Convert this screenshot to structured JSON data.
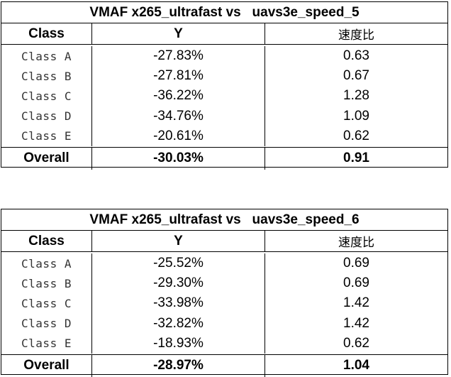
{
  "tables": [
    {
      "title": "VMAF x265_ultrafast vs   uavs3e_speed_5",
      "headers": [
        "Class",
        "Y",
        "速度比"
      ],
      "rows": [
        {
          "cls": "Class A",
          "y": "-27.83%",
          "speed": "0.63"
        },
        {
          "cls": "Class B",
          "y": "-27.81%",
          "speed": "0.67"
        },
        {
          "cls": "Class C",
          "y": "-36.22%",
          "speed": "1.28"
        },
        {
          "cls": "Class D",
          "y": "-34.76%",
          "speed": "1.09"
        },
        {
          "cls": "Class E",
          "y": "-20.61%",
          "speed": "0.62"
        }
      ],
      "overall": {
        "cls": "Overall",
        "y": "-30.03%",
        "speed": "0.91"
      }
    },
    {
      "title": "VMAF x265_ultrafast vs   uavs3e_speed_6",
      "headers": [
        "Class",
        "Y",
        "速度比"
      ],
      "rows": [
        {
          "cls": "Class A",
          "y": "-25.52%",
          "speed": "0.69"
        },
        {
          "cls": "Class B",
          "y": "-29.30%",
          "speed": "0.69"
        },
        {
          "cls": "Class C",
          "y": "-33.98%",
          "speed": "1.42"
        },
        {
          "cls": "Class D",
          "y": "-32.82%",
          "speed": "1.42"
        },
        {
          "cls": "Class E",
          "y": "-18.93%",
          "speed": "0.62"
        }
      ],
      "overall": {
        "cls": "Overall",
        "y": "-28.97%",
        "speed": "1.04"
      }
    }
  ]
}
